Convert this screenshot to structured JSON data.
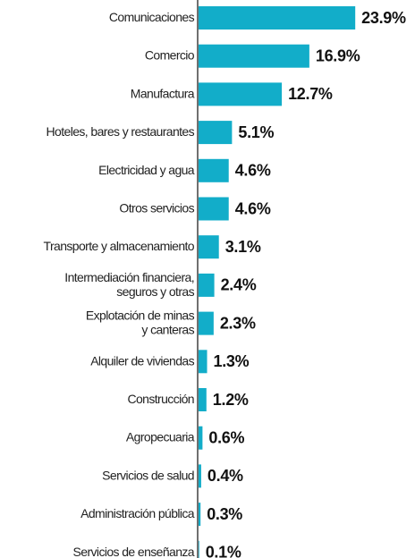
{
  "chart_data": {
    "type": "bar",
    "orientation": "horizontal",
    "color": "#12adc9",
    "categories": [
      "Comunicaciones",
      "Comercio",
      "Manufactura",
      "Hoteles, bares y restaurantes",
      "Electricidad y agua",
      "Otros servicios",
      "Transporte y almacenamiento",
      "Intermediación financiera,\nseguros y otras",
      "Explotación de minas\ny canteras",
      "Alquiler de viviendas",
      "Construcción",
      "Agropecuaria",
      "Servicios de salud",
      "Administración pública",
      "Servicios de enseñanza"
    ],
    "values": [
      23.9,
      16.9,
      12.7,
      5.1,
      4.6,
      4.6,
      3.1,
      2.4,
      2.3,
      1.3,
      1.2,
      0.6,
      0.4,
      0.3,
      0.1
    ],
    "value_labels": [
      "23.9%",
      "16.9%",
      "12.7%",
      "5.1%",
      "4.6%",
      "4.6%",
      "3.1%",
      "2.4%",
      "2.3%",
      "1.3%",
      "1.2%",
      "0.6%",
      "0.4%",
      "0.3%",
      "0.1%"
    ]
  }
}
